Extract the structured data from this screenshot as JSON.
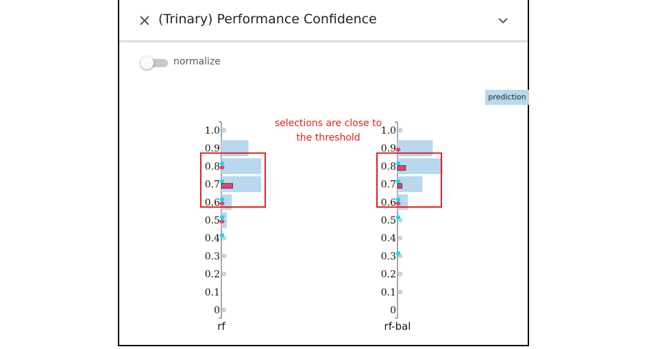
{
  "panel": {
    "title": "(Trinary) Performance Confidence",
    "close_icon": "close-icon",
    "collapse_icon": "chevron-down-icon"
  },
  "controls": {
    "normalize_label": "normalize",
    "normalize_on": false
  },
  "legend": {
    "prediction_label": "prediction",
    "prediction_color": "#b8d8ee"
  },
  "annotation": {
    "line1": "selections are close to",
    "line2": "the threshold",
    "color": "#e0201b"
  },
  "chart_data": {
    "type": "bar",
    "orientation": "horizontal",
    "y_ticks": [
      "1.0",
      "0.9",
      "0.8",
      "0.7",
      "0.6",
      "0.5",
      "0.4",
      "0.3",
      "0.2",
      "0.1",
      "0"
    ],
    "y_range": [
      0,
      1
    ],
    "x_range": [
      0,
      1
    ],
    "colors": {
      "prediction": "#b8d8ee",
      "selected": "#e8417a",
      "highlight": "#1fd8e8",
      "axis": "#888888"
    },
    "series": [
      {
        "name": "rf",
        "bins": [
          {
            "y": 1.0,
            "prediction": 0.04,
            "selected": 0,
            "highlight": 0
          },
          {
            "y": 0.9,
            "prediction": 0.6,
            "selected": 0,
            "highlight": 0
          },
          {
            "y": 0.8,
            "prediction": 0.88,
            "selected": 0.05,
            "highlight": 0.03
          },
          {
            "y": 0.7,
            "prediction": 0.88,
            "selected": 0.25,
            "highlight": 0.03
          },
          {
            "y": 0.6,
            "prediction": 0.23,
            "selected": 0.05,
            "highlight": 0.03
          },
          {
            "y": 0.5,
            "prediction": 0.12,
            "selected": 0.05,
            "highlight": 0.04
          },
          {
            "y": 0.4,
            "prediction": 0.06,
            "selected": 0,
            "highlight": 0.04
          },
          {
            "y": 0.3,
            "prediction": 0.05,
            "selected": 0,
            "highlight": 0
          },
          {
            "y": 0.2,
            "prediction": 0.04,
            "selected": 0,
            "highlight": 0
          },
          {
            "y": 0.1,
            "prediction": 0,
            "selected": 0,
            "highlight": 0
          },
          {
            "y": 0.0,
            "prediction": 0.04,
            "selected": 0,
            "highlight": 0
          }
        ]
      },
      {
        "name": "rf-bal",
        "bins": [
          {
            "y": 1.0,
            "prediction": 0.04,
            "selected": 0,
            "highlight": 0
          },
          {
            "y": 0.9,
            "prediction": 0.78,
            "selected": 0.05,
            "highlight": 0
          },
          {
            "y": 0.8,
            "prediction": 1.0,
            "selected": 0.18,
            "highlight": 0.03
          },
          {
            "y": 0.7,
            "prediction": 0.55,
            "selected": 0.1,
            "highlight": 0.03
          },
          {
            "y": 0.6,
            "prediction": 0.23,
            "selected": 0.05,
            "highlight": 0.03
          },
          {
            "y": 0.5,
            "prediction": 0.06,
            "selected": 0,
            "highlight": 0.04
          },
          {
            "y": 0.4,
            "prediction": 0.04,
            "selected": 0,
            "highlight": 0
          },
          {
            "y": 0.3,
            "prediction": 0.04,
            "selected": 0,
            "highlight": 0.04
          },
          {
            "y": 0.2,
            "prediction": 0.04,
            "selected": 0,
            "highlight": 0
          },
          {
            "y": 0.1,
            "prediction": 0.04,
            "selected": 0,
            "highlight": 0
          },
          {
            "y": 0.0,
            "prediction": 0,
            "selected": 0,
            "highlight": 0
          }
        ]
      }
    ],
    "highlight_boxes": [
      {
        "series": "rf",
        "y_from": 0.55,
        "y_to": 0.85
      },
      {
        "series": "rf-bal",
        "y_from": 0.55,
        "y_to": 0.85
      }
    ]
  }
}
